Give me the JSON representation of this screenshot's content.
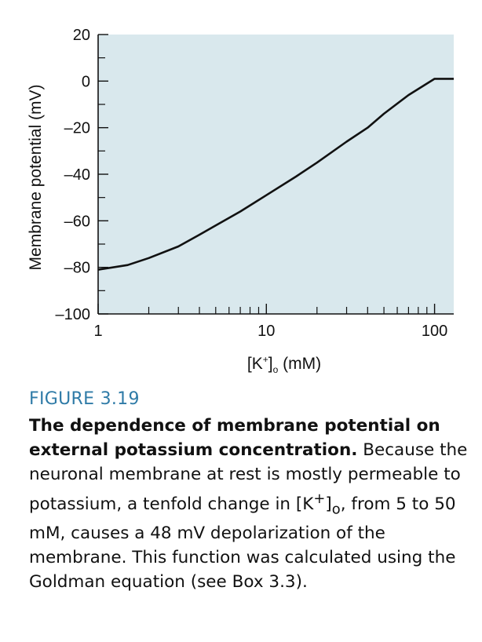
{
  "chart_data": {
    "type": "line",
    "xscale": "log",
    "xlabel_main": "[K",
    "xlabel_sup": "+",
    "xlabel_close": "]",
    "xlabel_sub": "o",
    "xlabel_unit": " (mM)",
    "ylabel": "Membrane potential (mV)",
    "xlim": [
      1,
      130
    ],
    "ylim": [
      -100,
      20
    ],
    "xtick_labels": [
      {
        "v": 1,
        "t": "1"
      },
      {
        "v": 10,
        "t": "10"
      },
      {
        "v": 100,
        "t": "100"
      }
    ],
    "xminor": [
      2,
      3,
      4,
      5,
      6,
      7,
      8,
      9,
      20,
      30,
      40,
      50,
      60,
      70,
      80,
      90
    ],
    "ytick_labels": [
      {
        "v": 20,
        "t": "20"
      },
      {
        "v": 0,
        "t": "0"
      },
      {
        "v": -20,
        "t": "–20"
      },
      {
        "v": -40,
        "t": "–40"
      },
      {
        "v": -60,
        "t": "–60"
      },
      {
        "v": -80,
        "t": "–80"
      },
      {
        "v": -100,
        "t": "–100"
      }
    ],
    "yminor": [
      10,
      -10,
      -30,
      -50,
      -70,
      -90
    ],
    "grid": false,
    "background": "#d9e8ed",
    "line_color": "#111111",
    "series": [
      {
        "x": [
          1,
          1.5,
          2,
          3,
          4,
          5,
          7,
          10,
          15,
          20,
          30,
          40,
          50,
          70,
          100,
          130
        ],
        "values": [
          -81,
          -79,
          -76,
          -71,
          -66,
          -62,
          -56,
          -49,
          -41,
          -35,
          -26,
          -20,
          -14,
          -6,
          1,
          1
        ]
      }
    ]
  },
  "caption": {
    "figure_label": "FIGURE 3.19",
    "title": "The dependence of membrane potential on external potassium concentration.",
    "body_part1": " Because the neuronal membrane at rest is mostly permeable to potassium, a tenfold change in [K",
    "body_sup": "+",
    "body_part2": "]",
    "body_sub": "o",
    "body_part3": ", from 5 to 50 mM, causes a 48 mV depolarization of the membrane. This function was calculated using the Goldman equation (see Box 3.3)."
  }
}
